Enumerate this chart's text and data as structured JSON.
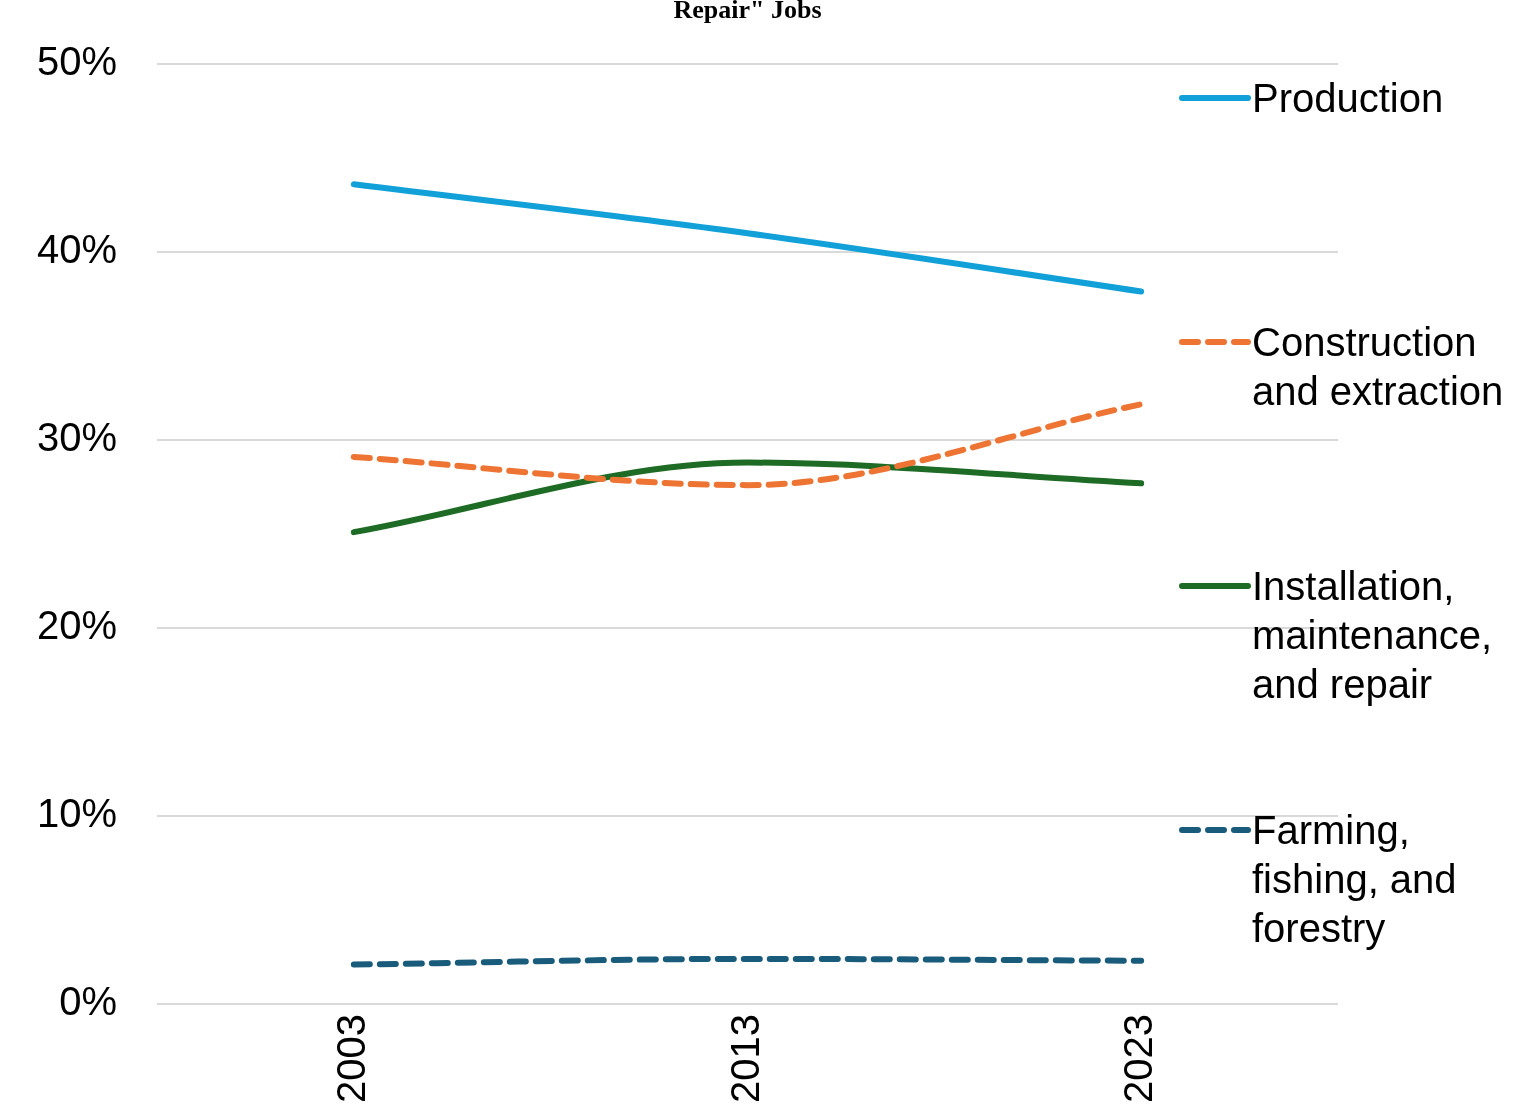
{
  "chart_data": {
    "type": "line",
    "title": "Repair\" Jobs",
    "categories": [
      "2003",
      "2013",
      "2023"
    ],
    "series": [
      {
        "name": "Production",
        "color": "#11a0d8",
        "values": [
          43.6,
          41.0,
          37.9
        ],
        "line_style": "solid"
      },
      {
        "name": "Construction and extraction",
        "color": "#ed7432",
        "values": [
          29.1,
          27.6,
          31.9
        ],
        "line_style": "dashed"
      },
      {
        "name": "Installation, maintenance, and repair",
        "color": "#1d6b24",
        "values": [
          25.1,
          28.8,
          27.7
        ],
        "line_style": "solid"
      },
      {
        "name": "Farming, fishing, and forestry",
        "color": "#195b7a",
        "values": [
          2.1,
          2.4,
          2.3
        ],
        "line_style": "dashed"
      }
    ],
    "ylim": [
      0,
      50
    ],
    "yticks": [
      {
        "value": 0,
        "label": "0%"
      },
      {
        "value": 10,
        "label": "10%"
      },
      {
        "value": 20,
        "label": "20%"
      },
      {
        "value": 30,
        "label": "30%"
      },
      {
        "value": 40,
        "label": "40%"
      },
      {
        "value": 50,
        "label": "50%"
      }
    ],
    "grid": "y",
    "legend": "right",
    "marker": "none"
  }
}
